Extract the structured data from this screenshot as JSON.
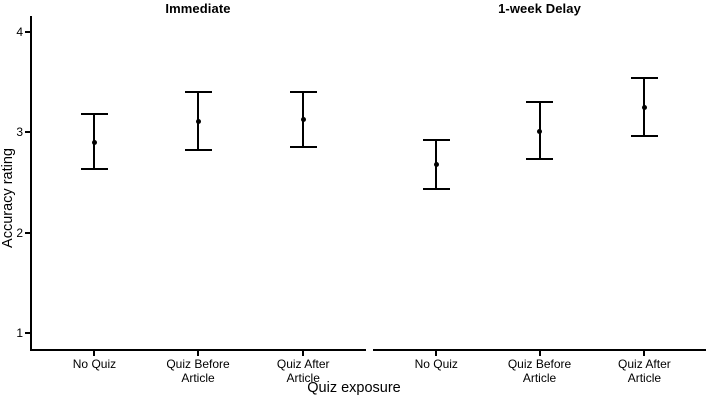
{
  "figure": {
    "background": "#ffffff",
    "ink_color": "#000000"
  },
  "chart_data": {
    "type": "errorbar",
    "title": "",
    "xlabel": "Quiz exposure",
    "ylabel": "Accuracy rating",
    "ylim": [
      0.85,
      4.17
    ],
    "yticks": [
      4,
      3,
      2,
      1
    ],
    "grid": false,
    "legend": "none",
    "category_labels": [
      "No Quiz",
      "Quiz Before\nArticle",
      "Quiz After\nArticle"
    ],
    "panels": [
      {
        "title": "Immediate",
        "points": [
          {
            "category": "No Quiz",
            "mean": 2.9,
            "lower": 2.63,
            "upper": 3.18
          },
          {
            "category": "Quiz Before Article",
            "mean": 3.11,
            "lower": 2.82,
            "upper": 3.4
          },
          {
            "category": "Quiz After Article",
            "mean": 3.13,
            "lower": 2.85,
            "upper": 3.4
          }
        ]
      },
      {
        "title": "1-week Delay",
        "points": [
          {
            "category": "No Quiz",
            "mean": 2.68,
            "lower": 2.44,
            "upper": 2.92
          },
          {
            "category": "Quiz Before Article",
            "mean": 3.01,
            "lower": 2.73,
            "upper": 3.3
          },
          {
            "category": "Quiz After Article",
            "mean": 3.25,
            "lower": 2.96,
            "upper": 3.54
          }
        ]
      }
    ]
  }
}
